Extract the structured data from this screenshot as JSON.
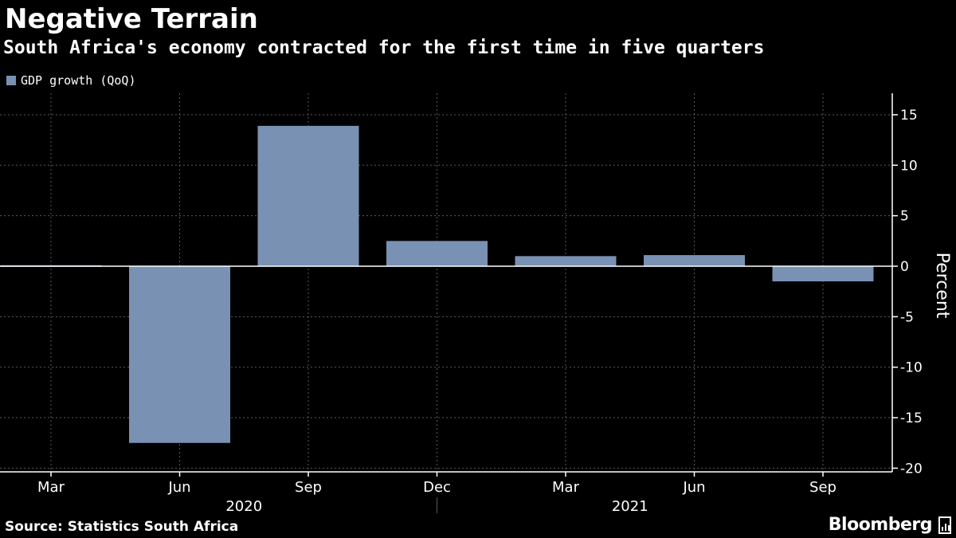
{
  "header": {
    "title": "Negative Terrain",
    "subtitle": "South Africa's economy contracted for the first time in five quarters"
  },
  "legend": {
    "label": "GDP growth (QoQ)",
    "color": "#7991b3"
  },
  "footer": {
    "source": "Source: Statistics South Africa",
    "brand": "Bloomberg",
    "brand_icon": "bloomberg-terminal-icon"
  },
  "colors": {
    "background": "#000000",
    "bar": "#7991b3",
    "grid": "#5a5a5a",
    "text": "#ffffff"
  },
  "chart_data": {
    "type": "bar",
    "title": "Negative Terrain",
    "subtitle": "South Africa's economy contracted for the first time in five quarters",
    "categories": [
      "Mar",
      "Jun",
      "Sep",
      "Dec",
      "Mar",
      "Jun",
      "Sep"
    ],
    "year_labels": [
      {
        "label": "2020",
        "spans": [
          "Mar",
          "Jun",
          "Sep",
          "Dec"
        ]
      },
      {
        "label": "2021",
        "spans": [
          "Mar",
          "Jun",
          "Sep"
        ]
      }
    ],
    "series": [
      {
        "name": "GDP growth (QoQ)",
        "values": [
          0.1,
          -17.5,
          13.9,
          2.5,
          1.0,
          1.1,
          -1.5
        ]
      }
    ],
    "xlabel": "",
    "ylabel": "Percent",
    "ylim": [
      -20.5,
      17
    ],
    "yticks": [
      15,
      10,
      5,
      0,
      -5,
      -10,
      -15,
      -20
    ],
    "ytick_labels": [
      "15",
      "10",
      "5",
      "0",
      "-5",
      "-10",
      "-15",
      "-20"
    ],
    "grid": true,
    "axis_side": "right",
    "legend_position": "top-left"
  }
}
